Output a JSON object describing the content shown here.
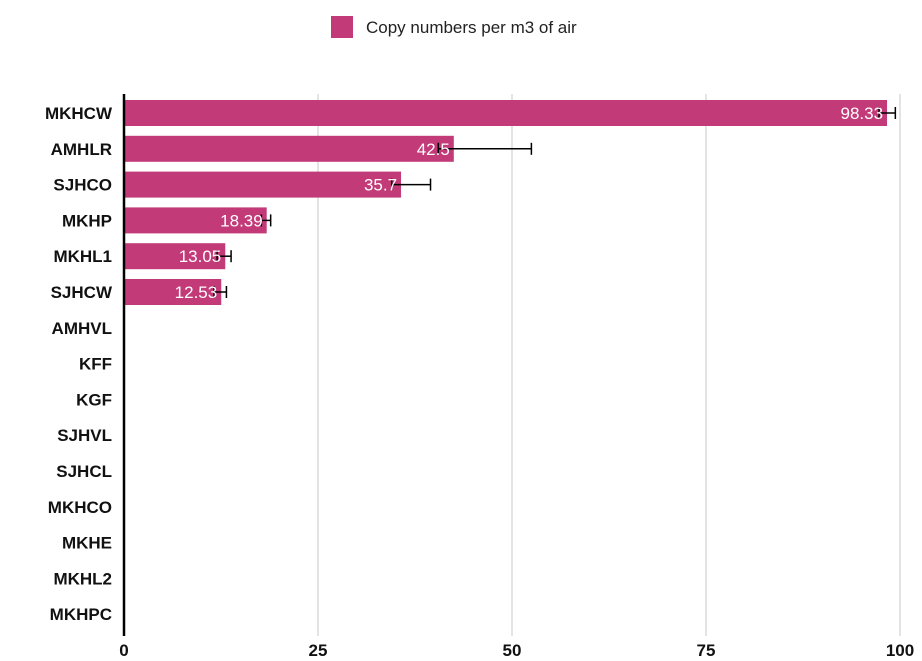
{
  "chart_data": {
    "type": "bar",
    "orientation": "horizontal",
    "categories": [
      "MKHCW",
      "AMHLR",
      "SJHCO",
      "MKHP",
      "MKHL1",
      "SJHCW",
      "AMHVL",
      "KFF",
      "KGF",
      "SJHVL",
      "SJHCL",
      "MKHCO",
      "MKHE",
      "MKHL2",
      "MKHPC"
    ],
    "series": [
      {
        "name": "Copy numbers per m3 of air",
        "values": [
          98.33,
          42.5,
          35.7,
          18.39,
          13.05,
          12.53,
          null,
          null,
          null,
          null,
          null,
          null,
          null,
          null,
          null
        ],
        "error_low": [
          97.3,
          40.5,
          34.5,
          17.7,
          12.0,
          11.6,
          null,
          null,
          null,
          null,
          null,
          null,
          null,
          null,
          null
        ],
        "error_high": [
          99.4,
          52.5,
          39.5,
          18.9,
          13.8,
          13.2,
          null,
          null,
          null,
          null,
          null,
          null,
          null,
          null,
          null
        ],
        "data_labels": [
          "98.33",
          "42.5",
          "35.7",
          "18.39",
          "13.05",
          "12.53",
          "",
          "",
          "",
          "",
          "",
          "",
          "",
          "",
          ""
        ]
      }
    ],
    "xlim": [
      0,
      100
    ],
    "xticks": [
      0,
      25,
      50,
      75,
      100
    ],
    "xtick_labels": [
      "0",
      "25",
      "50",
      "75",
      "100"
    ],
    "grid": "vertical",
    "legend_position": "top",
    "colors": {
      "bar": "#c23b78",
      "grid": "#c8c8c8",
      "axis": "#000000",
      "error": "#000000"
    }
  }
}
